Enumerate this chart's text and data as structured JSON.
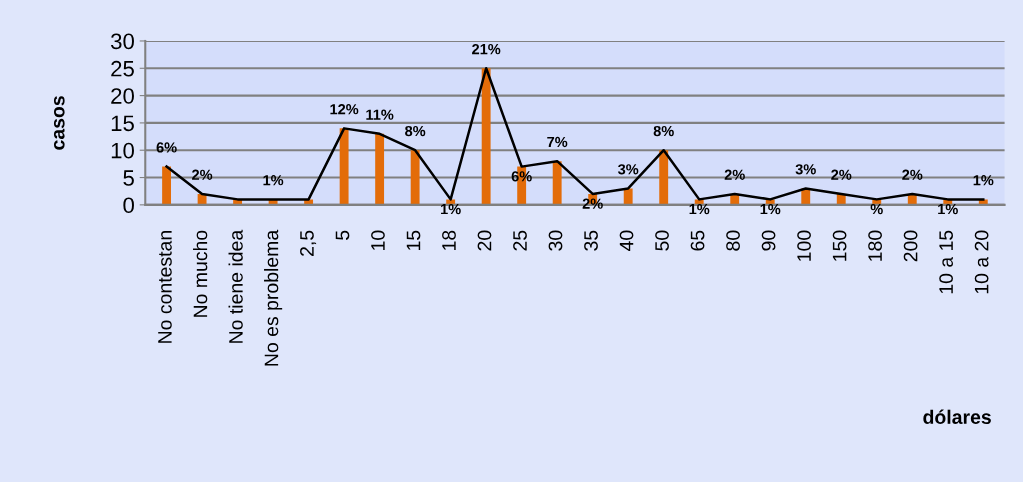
{
  "chart_data": {
    "type": "bar",
    "ylabel": "casos",
    "xlabel": "dólares",
    "categories": [
      "No contestan",
      "No mucho",
      "No tiene idea",
      "No es problema",
      "2,5",
      "5",
      "10",
      "15",
      "18",
      "20",
      "25",
      "30",
      "35",
      "40",
      "50",
      "65",
      "80",
      "90",
      "100",
      "150",
      "180",
      "200",
      "10 a 15",
      "10 a 20"
    ],
    "series": [
      {
        "color": "#e36c09",
        "values": [
          7,
          2,
          1,
          1,
          1,
          14,
          13,
          10,
          1,
          25,
          7,
          8,
          2,
          3,
          10,
          1,
          2,
          1,
          3,
          2,
          1,
          2,
          1,
          1
        ]
      },
      {
        "type": "line",
        "color": "#000000",
        "values": [
          7,
          2,
          1,
          1,
          1,
          14,
          13,
          10,
          1,
          25,
          7,
          8,
          2,
          3,
          10,
          1,
          2,
          1,
          3,
          2,
          1,
          2,
          1,
          1
        ]
      }
    ],
    "annotations": [
      {
        "text": "6%",
        "x": "No contestan",
        "y": 7
      },
      {
        "text": "2%",
        "x": "No mucho",
        "y": 2
      },
      {
        "text": "1%",
        "x": "No es problema",
        "y": 1
      },
      {
        "text": "12%",
        "x": "5",
        "y": 14
      },
      {
        "text": "11%",
        "x": "10",
        "y": 13
      },
      {
        "text": "8%",
        "x": "15",
        "y": 10
      },
      {
        "text": "1%",
        "x": "18",
        "y": 1
      },
      {
        "text": "21%",
        "x": "20",
        "y": 25
      },
      {
        "text": "6%",
        "x": "25",
        "y": 7
      },
      {
        "text": "7%",
        "x": "30",
        "y": 8
      },
      {
        "text": "2%",
        "x": "35",
        "y": 2
      },
      {
        "text": "3%",
        "x": "40",
        "y": 3
      },
      {
        "text": "8%",
        "x": "50",
        "y": 10
      },
      {
        "text": "1%",
        "x": "65",
        "y": 1
      },
      {
        "text": "2%",
        "x": "80",
        "y": 2
      },
      {
        "text": "1%",
        "x": "90",
        "y": 1
      },
      {
        "text": "3%",
        "x": "100",
        "y": 3
      },
      {
        "text": "2%",
        "x": "150",
        "y": 2
      },
      {
        "text": "%",
        "x": "180",
        "y": 1
      },
      {
        "text": "2%",
        "x": "200",
        "y": 2
      },
      {
        "text": "1%",
        "x": "10 a 15",
        "y": 1
      },
      {
        "text": "1%",
        "x": "10 a 20",
        "y": 1
      }
    ],
    "ylim": [
      0,
      30
    ],
    "yticks": [
      0,
      5,
      10,
      15,
      20,
      25,
      30
    ],
    "grid": "y",
    "marker": "none",
    "line_style": "solid"
  }
}
